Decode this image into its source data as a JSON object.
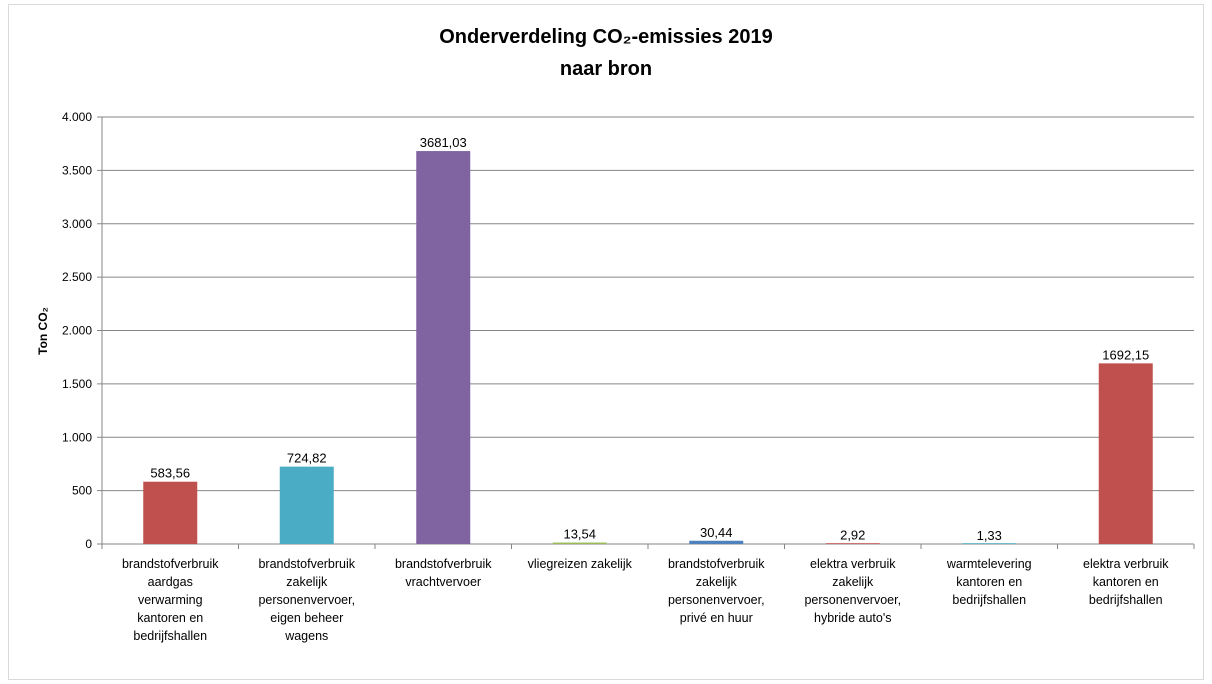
{
  "chart_data": {
    "type": "bar",
    "title_line1": "Onderverdeling CO₂-emissies 2019",
    "title_line2": "naar bron",
    "xlabel": "",
    "ylabel": "Ton CO₂",
    "ylim": [
      0,
      4000
    ],
    "yticks": [
      0,
      500,
      1000,
      1500,
      2000,
      2500,
      3000,
      3500,
      4000
    ],
    "ytick_labels": [
      "0",
      "500",
      "1.000",
      "1.500",
      "2.000",
      "2.500",
      "3.000",
      "3.500",
      "4.000"
    ],
    "grid": true,
    "legend": "none",
    "categories": [
      [
        "brandstofverbruik",
        "aardgas",
        "verwarming",
        "kantoren en",
        "bedrijfshallen"
      ],
      [
        "brandstofverbruik",
        "zakelijk",
        "personenvervoer,",
        "eigen beheer",
        "wagens"
      ],
      [
        "brandstofverbruik",
        "vrachtvervoer"
      ],
      [
        "vliegreizen zakelijk"
      ],
      [
        "brandstofverbruik",
        "zakelijk",
        "personenvervoer,",
        "privé en huur"
      ],
      [
        "elektra verbruik",
        "zakelijk",
        "personenvervoer,",
        "hybride auto's"
      ],
      [
        "warmtelevering",
        "kantoren en",
        "bedrijfshallen"
      ],
      [
        "elektra verbruik",
        "kantoren en",
        "bedrijfshallen"
      ]
    ],
    "values": [
      583.56,
      724.82,
      3681.03,
      13.54,
      30.44,
      2.92,
      1.33,
      1692.15
    ],
    "value_labels": [
      "583,56",
      "724,82",
      "3681,03",
      "13,54",
      "30,44",
      "2,92",
      "1,33",
      "1692,15"
    ],
    "colors": [
      "#c0504d",
      "#4bacc6",
      "#8064a2",
      "#9bbb59",
      "#4f81bd",
      "#c0504d",
      "#4bacc6",
      "#c0504d"
    ]
  }
}
